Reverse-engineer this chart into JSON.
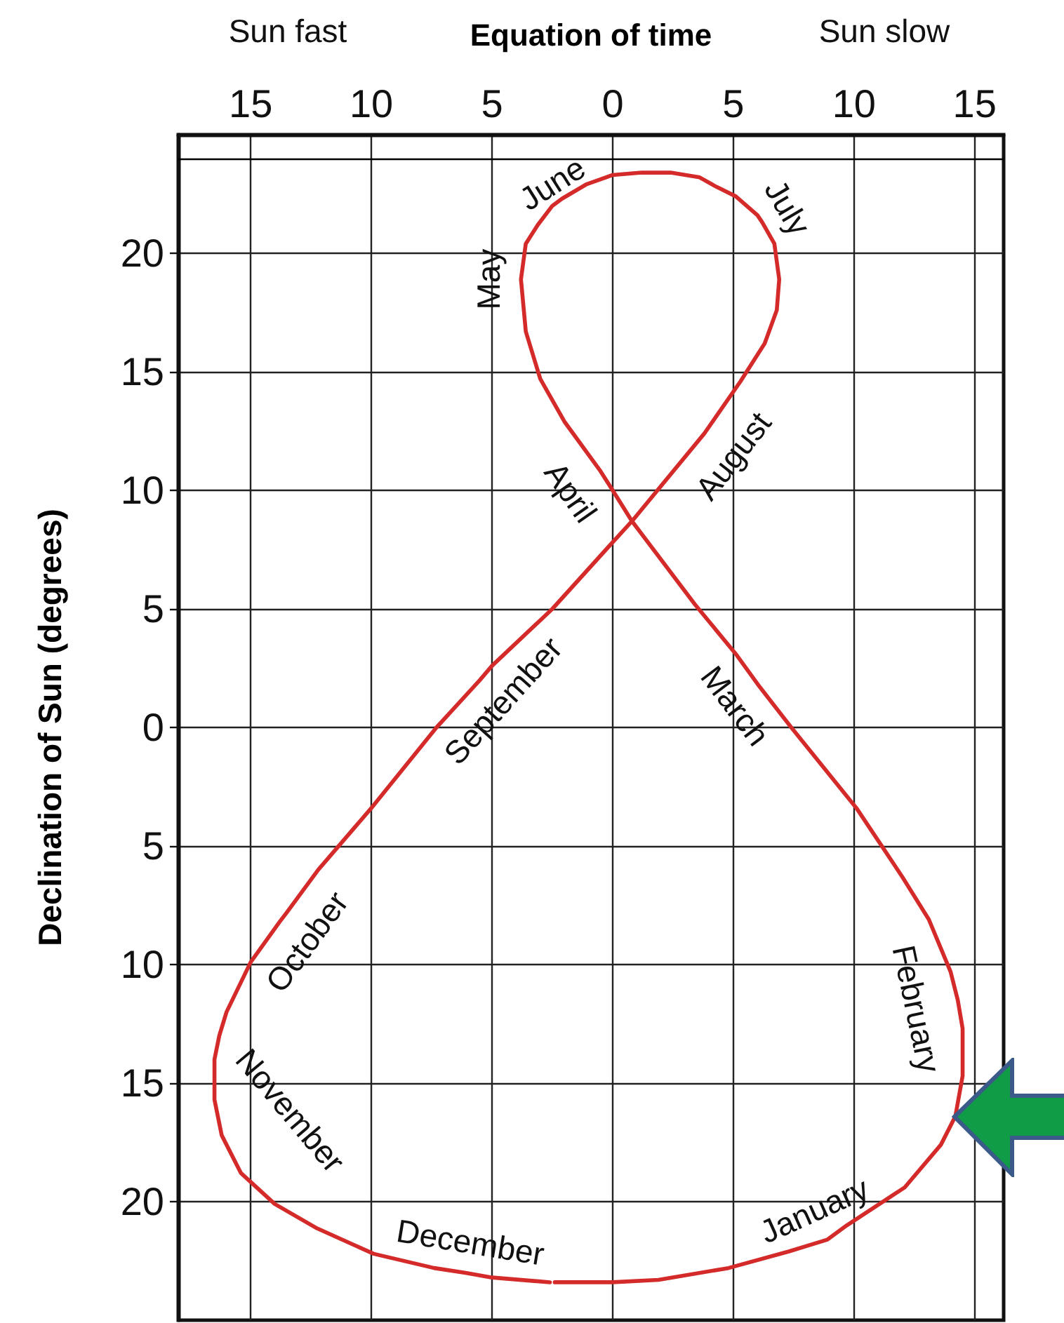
{
  "chart_data": {
    "type": "line",
    "xlabel": "Equation of time",
    "ylabel": "Declination of Sun (degrees)",
    "annotations": [
      "Sun fast",
      "Sun slow",
      {
        "text": "January",
        "x": 8.9,
        "y": -21.6
      },
      {
        "text": "February",
        "x": 14.3,
        "y": -11.5
      },
      {
        "text": "March",
        "x": 6.1,
        "y": 1.7
      },
      {
        "text": "April",
        "x": -0.5,
        "y": 10.8
      },
      {
        "text": "May",
        "x": -3.8,
        "y": 18.9
      },
      {
        "text": "June",
        "x": -2.1,
        "y": 22.3
      },
      {
        "text": "July",
        "x": 6.2,
        "y": 21.3
      },
      {
        "text": "August",
        "x": 3.8,
        "y": 12.4
      },
      {
        "text": "September",
        "x": -5.5,
        "y": 2.0
      },
      {
        "text": "October",
        "x": -13.8,
        "y": -8.2
      },
      {
        "text": "November",
        "x": -16.2,
        "y": -17.2
      },
      {
        "text": "December",
        "x": -6.1,
        "y": -23.0
      }
    ],
    "x": [
      -2.4,
      0,
      1.9,
      4.8,
      7.3,
      8.9,
      9.7,
      12.1,
      13.6,
      14.2,
      14.5,
      14.5,
      14.3,
      14.0,
      13.1,
      12.0,
      10.1,
      7.4,
      6.1,
      5.1,
      3.4,
      0.8,
      0,
      -0.5,
      -2.0,
      -3.0,
      -3.6,
      -3.8,
      -3.6,
      -3.1,
      -2.5,
      -2.1,
      -1.1,
      0,
      1.2,
      2.4,
      3.6,
      4.3,
      5.1,
      6.0,
      6.2,
      6.7,
      6.9,
      6.8,
      6.3,
      5.3,
      3.8,
      0.8,
      -0.1,
      -2.5,
      -5.0,
      -5.5,
      -7.3,
      -10.0,
      -12.2,
      -13.5,
      -13.8,
      -15.0,
      -16.0,
      -16.3,
      -16.5,
      -16.5,
      -16.2,
      -15.4,
      -14.0,
      -12.3,
      -9.9,
      -7.4,
      -6.1,
      -5.0,
      -2.6
    ],
    "values": [
      -23.4,
      -23.4,
      -23.3,
      -22.8,
      -22.1,
      -21.6,
      -21.0,
      -19.4,
      -17.6,
      -16.4,
      -14.7,
      -12.7,
      -11.5,
      -10.3,
      -8.1,
      -6.3,
      -3.4,
      0,
      1.7,
      3.1,
      5.2,
      8.7,
      10.0,
      10.8,
      12.9,
      14.7,
      16.7,
      18.9,
      20.4,
      21.2,
      22.0,
      22.3,
      22.9,
      23.3,
      23.4,
      23.4,
      23.2,
      22.8,
      22.4,
      21.6,
      21.3,
      20.4,
      18.9,
      17.6,
      16.2,
      14.6,
      12.4,
      8.7,
      7.7,
      5.0,
      2.6,
      2.0,
      0,
      -3.4,
      -6.0,
      -7.8,
      -8.2,
      -9.9,
      -12.0,
      -13.0,
      -14.0,
      -15.7,
      -17.2,
      -18.8,
      -20.1,
      -21.1,
      -22.2,
      -22.8,
      -23.0,
      -23.2,
      -23.4
    ],
    "color": "#d42a2a",
    "xlim": [
      -18,
      16.2
    ],
    "xticks": [
      {
        "value": -15,
        "label": "15"
      },
      {
        "value": -10,
        "label": "10"
      },
      {
        "value": -5,
        "label": "5"
      },
      0,
      5,
      10,
      15
    ],
    "ylim": [
      -25,
      25
    ],
    "yticks": [
      {
        "value": -20,
        "label": "20"
      },
      {
        "value": -15,
        "label": "15"
      },
      {
        "value": -10,
        "label": "10"
      },
      {
        "value": -5,
        "label": "5"
      },
      0,
      5,
      10,
      15,
      20
    ],
    "grid": true,
    "ref_lines": [
      {
        "axis": "y",
        "value": 24,
        "color": "#000000"
      }
    ]
  }
}
